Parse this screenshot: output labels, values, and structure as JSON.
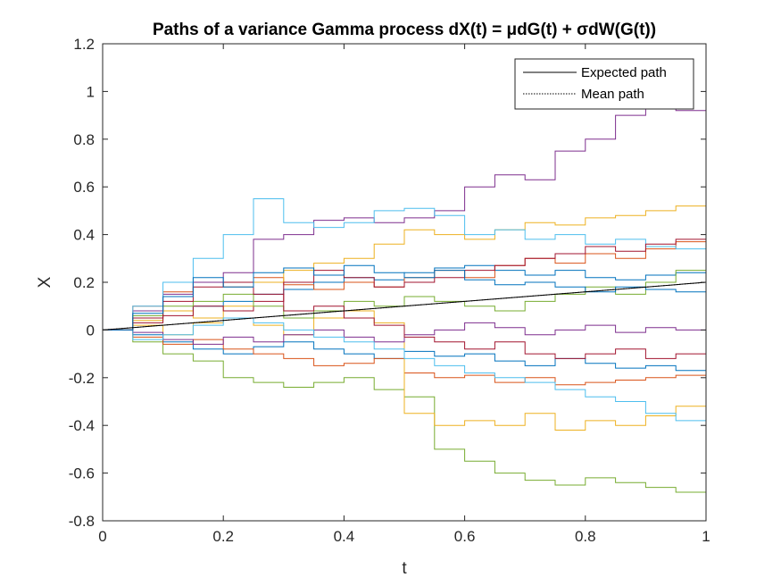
{
  "chart_data": {
    "type": "line",
    "title": "Paths of a variance Gamma process dX(t) = μdG(t) + σdW(G(t))",
    "xlabel": "t",
    "ylabel": "X",
    "xlim": [
      0,
      1
    ],
    "ylim": [
      -0.8,
      1.2
    ],
    "x_ticks": [
      "0",
      "0.2",
      "0.4",
      "0.6",
      "0.8",
      "1"
    ],
    "y_ticks": [
      "-0.8",
      "-0.6",
      "-0.4",
      "-0.2",
      "0",
      "0.2",
      "0.4",
      "0.6",
      "0.8",
      "1",
      "1.2"
    ],
    "grid": false,
    "legend_position": "top-right",
    "legend": [
      {
        "label": "Expected path",
        "style": "solid",
        "color": "#000000"
      },
      {
        "label": "Mean path",
        "style": "dotted",
        "color": "#000000"
      }
    ],
    "reference_lines": {
      "expected": {
        "x": [
          0,
          1
        ],
        "y": [
          0,
          0.2
        ]
      },
      "mean": {
        "x": [
          0,
          0.2,
          0.4,
          0.6,
          0.8,
          1
        ],
        "y": [
          0,
          0.04,
          0.08,
          0.12,
          0.16,
          0.2
        ]
      }
    },
    "series": [
      {
        "color": "#0072BD",
        "x": [
          0,
          0.05,
          0.1,
          0.15,
          0.2,
          0.25,
          0.3,
          0.35,
          0.4,
          0.45,
          0.5,
          0.55,
          0.6,
          0.65,
          0.7,
          0.75,
          0.8,
          0.85,
          0.9,
          0.95,
          1
        ],
        "y": [
          0,
          0.05,
          0.08,
          0.1,
          0.12,
          0.15,
          0.17,
          0.2,
          0.22,
          0.21,
          0.24,
          0.26,
          0.27,
          0.25,
          0.23,
          0.25,
          0.22,
          0.21,
          0.23,
          0.24,
          0.23
        ]
      },
      {
        "color": "#D95319",
        "x": [
          0,
          0.05,
          0.1,
          0.15,
          0.2,
          0.25,
          0.3,
          0.35,
          0.4,
          0.45,
          0.5,
          0.55,
          0.6,
          0.65,
          0.7,
          0.75,
          0.8,
          0.85,
          0.9,
          0.95,
          1
        ],
        "y": [
          0,
          0.1,
          0.16,
          0.2,
          0.18,
          0.22,
          0.19,
          0.17,
          0.2,
          0.18,
          0.22,
          0.25,
          0.22,
          0.27,
          0.3,
          0.28,
          0.32,
          0.3,
          0.34,
          0.37,
          0.39
        ]
      },
      {
        "color": "#EDB120",
        "x": [
          0,
          0.05,
          0.1,
          0.15,
          0.2,
          0.25,
          0.3,
          0.35,
          0.4,
          0.45,
          0.5,
          0.55,
          0.6,
          0.65,
          0.7,
          0.75,
          0.8,
          0.85,
          0.9,
          0.95,
          1
        ],
        "y": [
          0,
          0.04,
          0.08,
          0.05,
          0.1,
          0.2,
          0.25,
          0.28,
          0.3,
          0.36,
          0.42,
          0.4,
          0.38,
          0.42,
          0.45,
          0.44,
          0.47,
          0.48,
          0.5,
          0.52,
          0.53
        ]
      },
      {
        "color": "#7E2F8E",
        "x": [
          0,
          0.05,
          0.1,
          0.15,
          0.2,
          0.25,
          0.3,
          0.35,
          0.4,
          0.45,
          0.5,
          0.55,
          0.6,
          0.65,
          0.7,
          0.75,
          0.8,
          0.85,
          0.9,
          0.95,
          1
        ],
        "y": [
          0,
          0.08,
          0.15,
          0.2,
          0.24,
          0.38,
          0.4,
          0.46,
          0.47,
          0.45,
          0.47,
          0.5,
          0.6,
          0.65,
          0.63,
          0.75,
          0.8,
          0.9,
          0.96,
          0.92,
          0.86
        ]
      },
      {
        "color": "#77AC30",
        "x": [
          0,
          0.05,
          0.1,
          0.15,
          0.2,
          0.25,
          0.3,
          0.35,
          0.4,
          0.45,
          0.5,
          0.55,
          0.6,
          0.65,
          0.7,
          0.75,
          0.8,
          0.85,
          0.9,
          0.95,
          1
        ],
        "y": [
          0,
          -0.05,
          -0.1,
          -0.13,
          -0.2,
          -0.22,
          -0.24,
          -0.22,
          -0.2,
          -0.25,
          -0.28,
          -0.5,
          -0.55,
          -0.6,
          -0.63,
          -0.65,
          -0.62,
          -0.64,
          -0.66,
          -0.68,
          -0.63
        ]
      },
      {
        "color": "#4DBEEE",
        "x": [
          0,
          0.05,
          0.1,
          0.15,
          0.2,
          0.25,
          0.3,
          0.35,
          0.4,
          0.45,
          0.5,
          0.55,
          0.6,
          0.65,
          0.7,
          0.75,
          0.8,
          0.85,
          0.9,
          0.95,
          1
        ],
        "y": [
          0,
          0.1,
          0.2,
          0.3,
          0.4,
          0.55,
          0.45,
          0.43,
          0.45,
          0.5,
          0.51,
          0.48,
          0.4,
          0.42,
          0.38,
          0.4,
          0.36,
          0.38,
          0.35,
          0.34,
          0.35
        ]
      },
      {
        "color": "#A2142F",
        "x": [
          0,
          0.05,
          0.1,
          0.15,
          0.2,
          0.25,
          0.3,
          0.35,
          0.4,
          0.45,
          0.5,
          0.55,
          0.6,
          0.65,
          0.7,
          0.75,
          0.8,
          0.85,
          0.9,
          0.95,
          1
        ],
        "y": [
          0,
          0.03,
          0.06,
          0.1,
          0.08,
          0.12,
          0.2,
          0.25,
          0.22,
          0.18,
          0.2,
          0.22,
          0.25,
          0.27,
          0.3,
          0.32,
          0.35,
          0.33,
          0.36,
          0.38,
          0.39
        ]
      },
      {
        "color": "#0072BD",
        "x": [
          0,
          0.05,
          0.1,
          0.15,
          0.2,
          0.25,
          0.3,
          0.35,
          0.4,
          0.45,
          0.5,
          0.55,
          0.6,
          0.65,
          0.7,
          0.75,
          0.8,
          0.85,
          0.9,
          0.95,
          1
        ],
        "y": [
          0,
          -0.02,
          -0.05,
          -0.08,
          -0.1,
          -0.07,
          -0.05,
          -0.08,
          -0.1,
          -0.12,
          -0.09,
          -0.11,
          -0.1,
          -0.13,
          -0.15,
          -0.12,
          -0.14,
          -0.16,
          -0.15,
          -0.17,
          -0.16
        ]
      },
      {
        "color": "#D95319",
        "x": [
          0,
          0.05,
          0.1,
          0.15,
          0.2,
          0.25,
          0.3,
          0.35,
          0.4,
          0.45,
          0.5,
          0.55,
          0.6,
          0.65,
          0.7,
          0.75,
          0.8,
          0.85,
          0.9,
          0.95,
          1
        ],
        "y": [
          0,
          -0.03,
          -0.06,
          -0.04,
          -0.08,
          -0.1,
          -0.12,
          -0.15,
          -0.14,
          -0.12,
          -0.18,
          -0.2,
          -0.19,
          -0.22,
          -0.2,
          -0.23,
          -0.22,
          -0.21,
          -0.2,
          -0.19,
          -0.2
        ]
      },
      {
        "color": "#EDB120",
        "x": [
          0,
          0.05,
          0.1,
          0.15,
          0.2,
          0.25,
          0.3,
          0.35,
          0.4,
          0.45,
          0.5,
          0.55,
          0.6,
          0.65,
          0.7,
          0.75,
          0.8,
          0.85,
          0.9,
          0.95,
          1
        ],
        "y": [
          0,
          0.02,
          -0.02,
          0.03,
          0.05,
          0.02,
          -0.02,
          0.05,
          0.08,
          0.03,
          -0.35,
          -0.4,
          -0.38,
          -0.4,
          -0.35,
          -0.42,
          -0.38,
          -0.4,
          -0.36,
          -0.32,
          -0.3
        ]
      },
      {
        "color": "#7E2F8E",
        "x": [
          0,
          0.05,
          0.1,
          0.15,
          0.2,
          0.25,
          0.3,
          0.35,
          0.4,
          0.45,
          0.5,
          0.55,
          0.6,
          0.65,
          0.7,
          0.75,
          0.8,
          0.85,
          0.9,
          0.95,
          1
        ],
        "y": [
          0,
          -0.01,
          -0.04,
          -0.06,
          -0.03,
          -0.05,
          -0.02,
          0,
          -0.03,
          -0.05,
          -0.02,
          0,
          0.03,
          0.01,
          -0.02,
          0,
          0.02,
          -0.01,
          0.01,
          0,
          -0.02
        ]
      },
      {
        "color": "#77AC30",
        "x": [
          0,
          0.05,
          0.1,
          0.15,
          0.2,
          0.25,
          0.3,
          0.35,
          0.4,
          0.45,
          0.5,
          0.55,
          0.6,
          0.65,
          0.7,
          0.75,
          0.8,
          0.85,
          0.9,
          0.95,
          1
        ],
        "y": [
          0,
          0.06,
          0.1,
          0.12,
          0.15,
          0.1,
          0.05,
          0.08,
          0.12,
          0.1,
          0.14,
          0.12,
          0.1,
          0.08,
          0.12,
          0.15,
          0.18,
          0.15,
          0.2,
          0.25,
          0.3
        ]
      },
      {
        "color": "#4DBEEE",
        "x": [
          0,
          0.05,
          0.1,
          0.15,
          0.2,
          0.25,
          0.3,
          0.35,
          0.4,
          0.45,
          0.5,
          0.55,
          0.6,
          0.65,
          0.7,
          0.75,
          0.8,
          0.85,
          0.9,
          0.95,
          1
        ],
        "y": [
          0,
          -0.04,
          -0.02,
          0.02,
          0.05,
          0.03,
          0,
          -0.03,
          -0.05,
          -0.08,
          -0.12,
          -0.15,
          -0.18,
          -0.2,
          -0.22,
          -0.25,
          -0.28,
          -0.3,
          -0.35,
          -0.38,
          -0.37
        ]
      },
      {
        "color": "#A2142F",
        "x": [
          0,
          0.05,
          0.1,
          0.15,
          0.2,
          0.25,
          0.3,
          0.35,
          0.4,
          0.45,
          0.5,
          0.55,
          0.6,
          0.65,
          0.7,
          0.75,
          0.8,
          0.85,
          0.9,
          0.95,
          1
        ],
        "y": [
          0,
          0.05,
          0.12,
          0.18,
          0.2,
          0.15,
          0.08,
          0.1,
          0.05,
          0.02,
          -0.03,
          -0.05,
          -0.08,
          -0.05,
          -0.1,
          -0.12,
          -0.1,
          -0.08,
          -0.12,
          -0.1,
          -0.08
        ]
      },
      {
        "color": "#0072BD",
        "x": [
          0,
          0.05,
          0.1,
          0.15,
          0.2,
          0.25,
          0.3,
          0.35,
          0.4,
          0.45,
          0.5,
          0.55,
          0.6,
          0.65,
          0.7,
          0.75,
          0.8,
          0.85,
          0.9,
          0.95,
          1
        ],
        "y": [
          0,
          0.07,
          0.14,
          0.22,
          0.18,
          0.24,
          0.26,
          0.23,
          0.27,
          0.24,
          0.22,
          0.25,
          0.21,
          0.19,
          0.2,
          0.18,
          0.16,
          0.18,
          0.17,
          0.16,
          0.18
        ]
      }
    ]
  }
}
